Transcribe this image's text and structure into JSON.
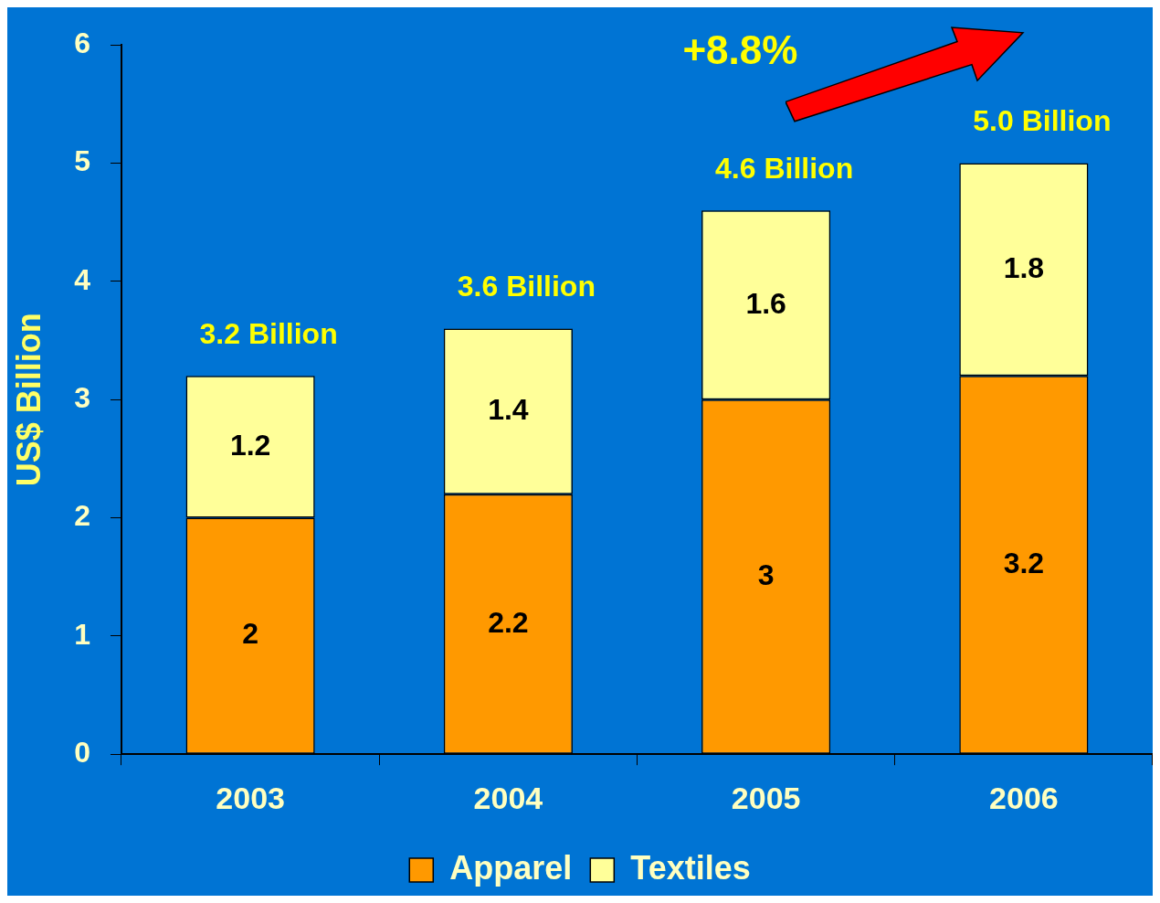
{
  "chart_data": {
    "type": "bar",
    "ylabel": "US$ Billion",
    "categories": [
      "2003",
      "2004",
      "2005",
      "2006"
    ],
    "stacked": true,
    "series": [
      {
        "name": "Apparel",
        "color": "#ff9900",
        "values": [
          2,
          2.2,
          3,
          3.2
        ]
      },
      {
        "name": "Textiles",
        "color": "#ffff99",
        "values": [
          1.2,
          1.4,
          1.6,
          1.8
        ]
      }
    ],
    "ylim": [
      0,
      6
    ],
    "yticks": [
      0,
      1,
      2,
      3,
      4,
      5,
      6
    ],
    "grid": false,
    "legend": "bottom",
    "data_labels": true,
    "totals": [
      "3.2 Billion",
      "3.6 Billion",
      "4.6 Billion",
      "5.0 Billion"
    ],
    "annotations": [
      "+8.8%"
    ]
  }
}
